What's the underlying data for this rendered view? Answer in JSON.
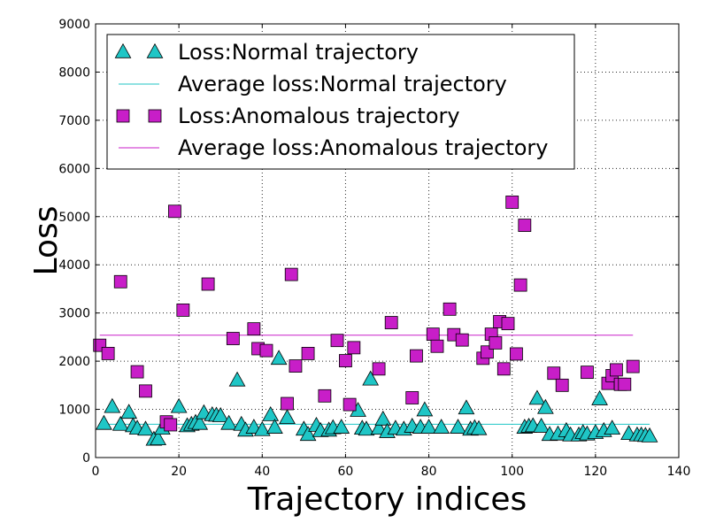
{
  "chart_data": {
    "type": "scatter",
    "xlabel": "Trajectory indices",
    "ylabel": "Loss",
    "xlim": [
      0,
      140
    ],
    "ylim": [
      0,
      9000
    ],
    "xticks": [
      0,
      20,
      40,
      60,
      80,
      100,
      120,
      140
    ],
    "yticks": [
      0,
      1000,
      2000,
      3000,
      4000,
      5000,
      6000,
      7000,
      8000,
      9000
    ],
    "grid": true,
    "legend_position": "top-left",
    "legend": [
      {
        "label": "Loss:Normal trajectory",
        "kind": "marker",
        "marker": "triangle",
        "color": "#1fc6c6"
      },
      {
        "label": "Average loss:Normal trajectory",
        "kind": "line",
        "color": "#1fc6c6"
      },
      {
        "label": "Loss:Anomalous trajectory",
        "kind": "marker",
        "marker": "square",
        "color": "#c81ec8"
      },
      {
        "label": "Average loss:Anomalous trajectory",
        "kind": "line",
        "color": "#c81ec8"
      }
    ],
    "series": [
      {
        "name": "Loss:Normal trajectory",
        "marker": "triangle",
        "color": "#1fc6c6",
        "x": [
          2,
          4,
          6,
          8,
          9,
          10,
          12,
          14,
          15,
          16,
          20,
          22,
          23,
          24,
          25,
          26,
          28,
          29,
          30,
          32,
          34,
          35,
          36,
          38,
          40,
          42,
          43,
          44,
          46,
          50,
          51,
          53,
          54,
          56,
          57,
          59,
          63,
          64,
          65,
          66,
          68,
          69,
          70,
          72,
          74,
          76,
          78,
          79,
          80,
          83,
          87,
          89,
          90,
          91,
          92,
          103,
          104,
          105,
          106,
          107,
          108,
          109,
          111,
          113,
          114,
          116,
          117,
          118,
          120,
          121,
          122,
          124,
          128,
          130,
          131,
          132,
          133
        ],
        "values": [
          700,
          1050,
          680,
          930,
          650,
          600,
          580,
          370,
          380,
          600,
          1050,
          650,
          680,
          720,
          700,
          920,
          880,
          870,
          860,
          700,
          1600,
          680,
          560,
          620,
          570,
          880,
          620,
          2050,
          820,
          580,
          470,
          660,
          550,
          560,
          610,
          620,
          970,
          600,
          580,
          1620,
          600,
          790,
          530,
          600,
          580,
          640,
          620,
          980,
          620,
          620,
          620,
          1020,
          580,
          610,
          590,
          620,
          640,
          650,
          1220,
          640,
          1030,
          470,
          480,
          550,
          460,
          460,
          510,
          480,
          510,
          1210,
          550,
          600,
          490,
          460,
          460,
          450,
          440
        ]
      },
      {
        "name": "Average loss:Normal trajectory",
        "type": "line",
        "color": "#1fc6c6",
        "x": [
          1,
          133
        ],
        "values": [
          690,
          690
        ]
      },
      {
        "name": "Loss:Anomalous trajectory",
        "marker": "square",
        "color": "#c81ec8",
        "x": [
          1,
          3,
          6,
          10,
          12,
          17,
          18,
          19,
          21,
          27,
          33,
          38,
          39,
          41,
          46,
          47,
          48,
          51,
          55,
          58,
          60,
          61,
          62,
          68,
          71,
          76,
          77,
          81,
          82,
          85,
          86,
          88,
          93,
          94,
          95,
          96,
          97,
          98,
          99,
          100,
          101,
          102,
          103,
          110,
          112,
          118,
          123,
          124,
          125,
          126,
          127,
          129
        ],
        "values": [
          2330,
          2160,
          3650,
          1780,
          1380,
          740,
          680,
          5110,
          3060,
          3600,
          2470,
          2670,
          2260,
          2220,
          1120,
          3800,
          1900,
          2160,
          1280,
          2430,
          2010,
          1100,
          2280,
          1840,
          2800,
          1240,
          2110,
          2560,
          2310,
          3080,
          2550,
          2440,
          2060,
          2190,
          2560,
          2380,
          2820,
          1840,
          2780,
          5300,
          2150,
          3580,
          4820,
          1750,
          1500,
          1770,
          1540,
          1700,
          1820,
          1520,
          1520,
          1890
        ]
      },
      {
        "name": "Average loss:Anomalous trajectory",
        "type": "line",
        "color": "#c81ec8",
        "x": [
          1,
          129
        ],
        "values": [
          2540,
          2540
        ]
      }
    ]
  }
}
